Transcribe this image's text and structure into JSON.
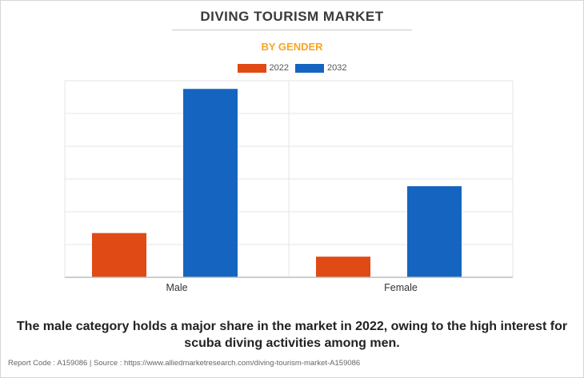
{
  "chart_data": {
    "type": "bar",
    "title": "DIVING TOURISM MARKET",
    "subtitle": "BY GENDER",
    "categories": [
      "Male",
      "Female"
    ],
    "series": [
      {
        "name": "2022",
        "values": [
          13.5,
          6.3
        ]
      },
      {
        "name": "2032",
        "values": [
          57.5,
          27.8
        ]
      }
    ],
    "ylim": [
      0,
      60
    ],
    "y_gridlines": [
      0,
      10,
      20,
      30,
      40,
      50,
      60
    ],
    "show_y_tick_labels": false,
    "grid": true,
    "legend_position": "top-center",
    "xlabel": "",
    "ylabel": ""
  },
  "colors": {
    "series_2022": "#e04a15",
    "series_2032": "#1565c0",
    "grid": "#e6e6e6",
    "axis": "#bdbdbd"
  },
  "caption": "The male category holds a major share in the market in 2022, owing to the high interest for scuba diving activities among men.",
  "footer": "Report Code : A159086  |  Source : https://www.alliedmarketresearch.com/diving-tourism-market-A159086"
}
